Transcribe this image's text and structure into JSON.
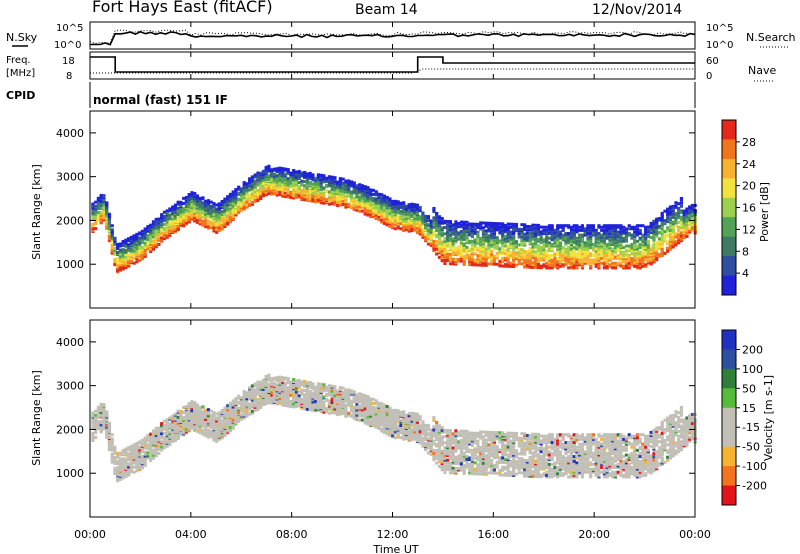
{
  "header": {
    "station": "Fort Hays East (fitACF)",
    "beam": "Beam 14",
    "date": "12/Nov/2014"
  },
  "aux_panels": {
    "nsky_label": "N.Sky",
    "nsearch_label": "N.Search",
    "freq_label_1": "Freq.",
    "freq_label_2": "[MHz]",
    "nave_label": "Nave",
    "cpid_label": "CPID",
    "cpid_text": "normal (fast) 151 IF",
    "noise_ticks": [
      "10^5",
      "10^0"
    ],
    "freq_ticks": [
      "18",
      "8"
    ],
    "nave_ticks": [
      "60",
      "0"
    ]
  },
  "colors": {
    "scatter_gray": "#c2c0b6",
    "power_scale": [
      "#1f22d8",
      "#2e4fa0",
      "#3f7a64",
      "#53a356",
      "#9bd04f",
      "#f3e13c",
      "#f6b230",
      "#f2741c",
      "#e4281b"
    ],
    "velocity_scale": [
      "#e3121b",
      "#f2741c",
      "#f6b230",
      "#c2c0b6",
      "#c2c0b6",
      "#54bc3a",
      "#2f7f3b",
      "#2e4fa0",
      "#2030c0"
    ]
  },
  "chart_data": [
    {
      "type": "heatmap",
      "title": "Power",
      "ylabel": "Slant Range [km]",
      "yticks": [
        "1000",
        "2000",
        "3000",
        "4000"
      ],
      "ylim": [
        0,
        4500
      ],
      "colorbar": {
        "label": "Power [dB]",
        "ticks": [
          "4",
          "8",
          "12",
          "16",
          "20",
          "24",
          "28"
        ],
        "range": [
          0,
          32
        ]
      },
      "x": [
        "00:00",
        "04:00",
        "08:00",
        "12:00",
        "16:00",
        "20:00",
        "00:00"
      ],
      "series": [
        {
          "points": [
            [
              0.0,
              1900
            ],
            [
              0.5,
              2200
            ],
            [
              1.0,
              1000
            ],
            [
              2.0,
              1300
            ],
            [
              3.0,
              1800
            ],
            [
              4.0,
              2200
            ],
            [
              5.0,
              1900
            ],
            [
              6.0,
              2400
            ],
            [
              7.0,
              2800
            ],
            [
              8.0,
              2700
            ],
            [
              9.0,
              2600
            ],
            [
              10.0,
              2500
            ],
            [
              11.0,
              2300
            ],
            [
              12.0,
              2000
            ],
            [
              13.0,
              1900
            ],
            [
              14.0,
              1200
            ],
            [
              16.0,
              1150
            ],
            [
              18.0,
              1100
            ],
            [
              20.0,
              1100
            ],
            [
              22.0,
              1100
            ],
            [
              23.8,
              1900
            ]
          ]
        }
      ]
    },
    {
      "type": "heatmap",
      "title": "Velocity",
      "ylabel": "Slant Range [km]",
      "yticks": [
        "1000",
        "2000",
        "3000",
        "4000"
      ],
      "ylim": [
        0,
        4500
      ],
      "colorbar": {
        "label": "Velocity [m s-1]",
        "ticks": [
          "200",
          "100",
          "50",
          "15",
          "-15",
          "-50",
          "-100",
          "-200"
        ],
        "range": [
          -250,
          250
        ]
      },
      "x": [
        "00:00",
        "04:00",
        "08:00",
        "12:00",
        "16:00",
        "20:00",
        "00:00"
      ],
      "xlabel": "Time UT"
    }
  ]
}
